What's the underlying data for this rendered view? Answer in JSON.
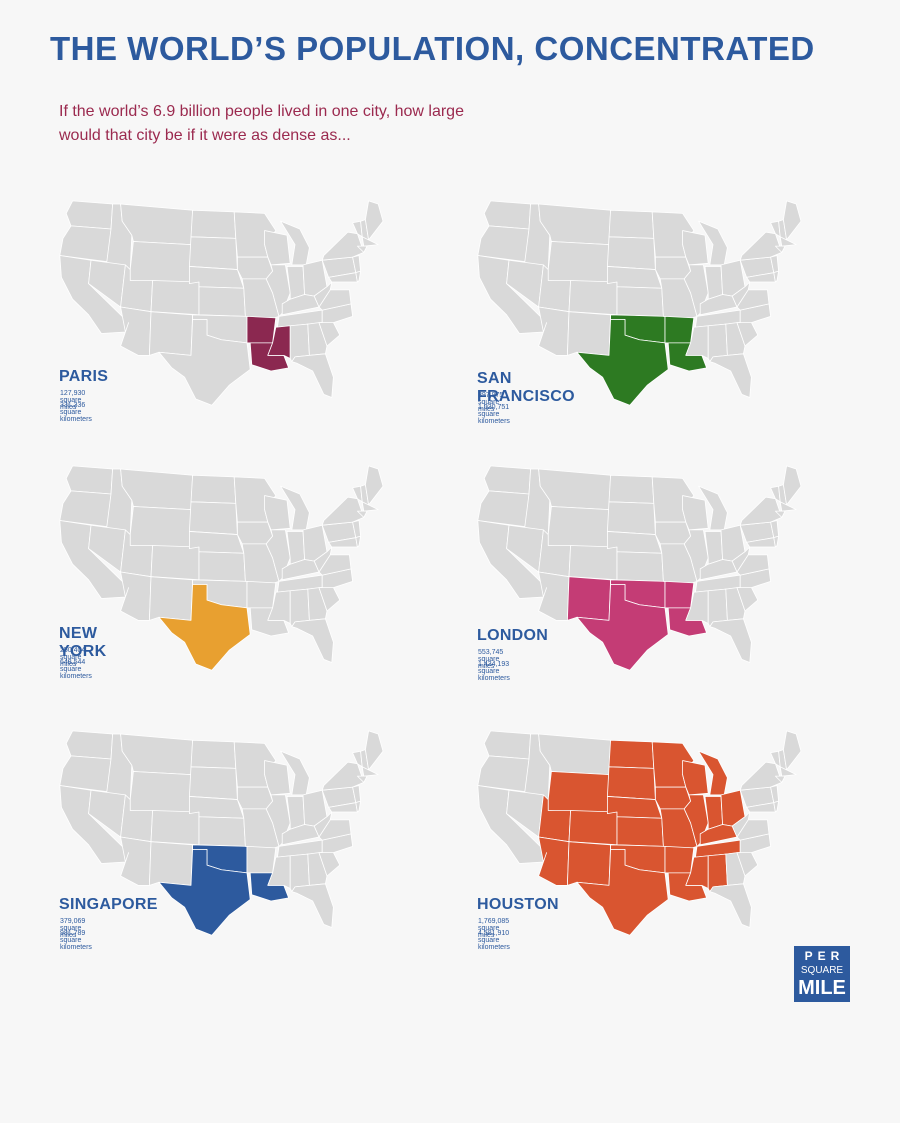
{
  "header": {
    "title": "THE WORLD’S POPULATION, CONCENTRATED",
    "subtitle_line1": "If the world’s 6.9 billion people lived in one city, how large",
    "subtitle_line2": "would that city be if it were as dense as..."
  },
  "colors": {
    "title": "#2d5a9e",
    "subtitle": "#9b2a4f",
    "base_map": "#d9d9d9",
    "state_border": "#ffffff",
    "background": "#f7f7f7"
  },
  "panels": [
    {
      "city": "PARIS",
      "miles": "127,930 square miles",
      "km": "331,336 square kilometers",
      "color": "#8b2850",
      "highlighted_states": [
        "Arkansas",
        "Louisiana",
        "Mississippi"
      ]
    },
    {
      "city": "SAN FRANCISCO",
      "miles": "397,975 square miles",
      "km": "1,030,751 square kilometers",
      "color": "#2d7a22",
      "highlighted_states": [
        "Texas",
        "Oklahoma",
        "Arkansas",
        "Louisiana"
      ]
    },
    {
      "city": "NEW YORK",
      "miles": "250,404 square miles",
      "km": "648,544 square kilometers",
      "color": "#e8a030",
      "highlighted_states": [
        "Texas"
      ]
    },
    {
      "city": "LONDON",
      "miles": "553,745 square miles",
      "km": "1,434,193 square kilometers",
      "color": "#c43c75",
      "highlighted_states": [
        "New Mexico",
        "Texas",
        "Oklahoma",
        "Arkansas",
        "Louisiana"
      ]
    },
    {
      "city": "SINGAPORE",
      "miles": "379,069 square miles",
      "km": "981,789 square kilometers",
      "color": "#2d5a9e",
      "highlighted_states": [
        "Texas",
        "Oklahoma",
        "Louisiana"
      ]
    },
    {
      "city": "HOUSTON",
      "miles": "1,769,085 square miles",
      "km": "4,581,910 square kilometers",
      "color": "#d95530",
      "highlighted_states": [
        "Arizona",
        "Utah",
        "Colorado",
        "New Mexico",
        "Wyoming",
        "Nebraska",
        "South Dakota",
        "North Dakota",
        "Minnesota",
        "Iowa",
        "Kansas",
        "Oklahoma",
        "Texas",
        "Missouri",
        "Arkansas",
        "Louisiana",
        "Mississippi",
        "Alabama",
        "Tennessee",
        "Kentucky",
        "Illinois",
        "Indiana",
        "Ohio",
        "Michigan",
        "Wisconsin"
      ]
    }
  ],
  "logo": {
    "line1": "PER",
    "line2": "SQUARE",
    "line3": "MILE"
  }
}
